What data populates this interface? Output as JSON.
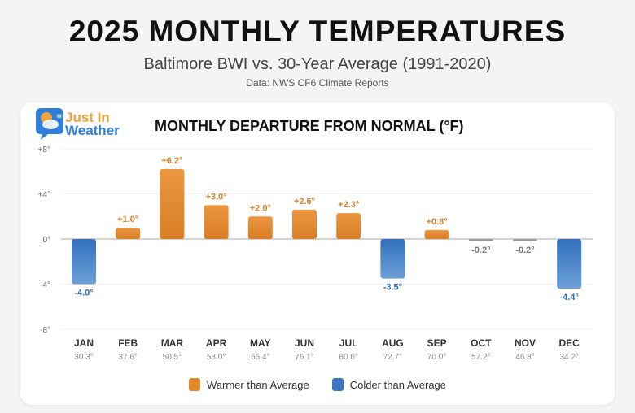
{
  "header": {
    "title": "2025 MONTHLY TEMPERATURES",
    "subtitle": "Baltimore BWI vs. 30-Year Average (1991-2020)",
    "source": "Data: NWS CF6 Climate Reports"
  },
  "logo": {
    "line1": "Just In",
    "line2": "Weather"
  },
  "colors": {
    "warmer": "#e08a2e",
    "colder": "#3a78c2",
    "neutral": "#9a9a9a"
  },
  "chart_data": {
    "type": "bar",
    "title": "MONTHLY DEPARTURE FROM NORMAL (°F)",
    "categories": [
      "JAN",
      "FEB",
      "MAR",
      "APR",
      "MAY",
      "JUN",
      "JUL",
      "AUG",
      "SEP",
      "OCT",
      "NOV",
      "DEC"
    ],
    "values": [
      -4.0,
      1.0,
      6.2,
      3.0,
      2.0,
      2.6,
      2.3,
      -3.5,
      0.8,
      -0.2,
      -0.2,
      -4.4
    ],
    "value_labels": [
      "-4.0°",
      "+1.0°",
      "+6.2°",
      "+3.0°",
      "+2.0°",
      "+2.6°",
      "+2.3°",
      "-3.5°",
      "+0.8°",
      "-0.2°",
      "-0.2°",
      "-4.4°"
    ],
    "averages": [
      "30.3°",
      "37.6°",
      "50.5°",
      "58.0°",
      "66.4°",
      "76.1°",
      "80.6°",
      "72.7°",
      "70.0°",
      "57.2°",
      "46.8°",
      "34.2°"
    ],
    "ylim": [
      -8,
      8
    ],
    "yticks": [
      8,
      4,
      0,
      -4,
      -8
    ],
    "ytick_labels": [
      "+8°",
      "+4°",
      "0°",
      "-4°",
      "-8°"
    ],
    "grid": true,
    "legend_position": "bottom",
    "legend": [
      "Warmer than Average",
      "Colder than Average"
    ]
  }
}
